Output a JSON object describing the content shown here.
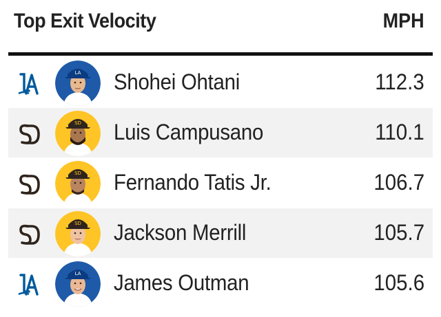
{
  "header": {
    "title": "Top Exit Velocity",
    "unit": "MPH"
  },
  "colors": {
    "dodgers_blue": "#005a9c",
    "padres_brown": "#2f241d",
    "padres_gold": "#ffc425"
  },
  "rows": [
    {
      "team_icon": "dodgers-la-logo-icon",
      "player": "Shohei Ohtani",
      "value": "112.3"
    },
    {
      "team_icon": "padres-sd-logo-icon",
      "player": "Luis Campusano",
      "value": "110.1"
    },
    {
      "team_icon": "padres-sd-logo-icon",
      "player": "Fernando Tatis Jr.",
      "value": "106.7"
    },
    {
      "team_icon": "padres-sd-logo-icon",
      "player": "Jackson Merrill",
      "value": "105.7"
    },
    {
      "team_icon": "dodgers-la-logo-icon",
      "player": "James Outman",
      "value": "105.6"
    }
  ]
}
